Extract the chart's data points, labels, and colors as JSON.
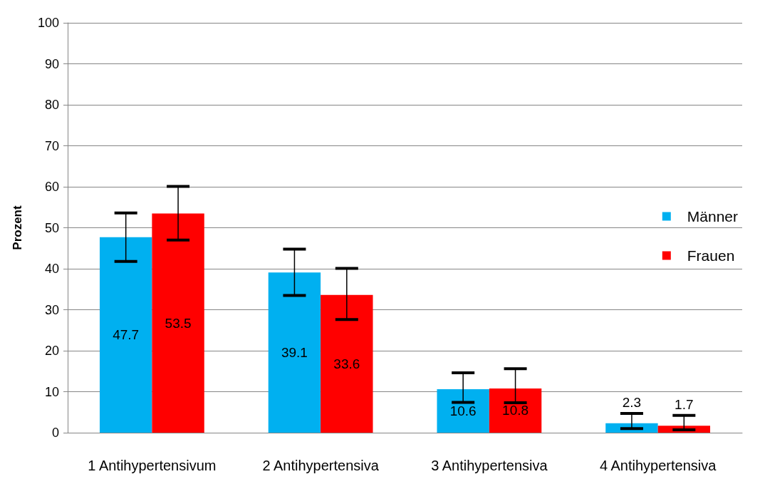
{
  "chart_data": {
    "type": "bar",
    "ylabel": "Prozent",
    "categories": [
      "1 Antihypertensivum",
      "2 Antihypertensiva",
      "3 Antihypertensiva",
      "4 Antihypertensiva"
    ],
    "series": [
      {
        "name": "Männer",
        "color": "#00b0f0",
        "values": [
          47.7,
          39.1,
          10.6,
          2.3
        ],
        "errors": [
          [
            41.8,
            53.6
          ],
          [
            33.5,
            44.8
          ],
          [
            7.4,
            14.6
          ],
          [
            1.0,
            4.7
          ]
        ]
      },
      {
        "name": "Frauen",
        "color": "#ff0000",
        "values": [
          53.5,
          33.6,
          10.8,
          1.7
        ],
        "errors": [
          [
            47.0,
            60.1
          ],
          [
            27.6,
            40.1
          ],
          [
            7.3,
            15.6
          ],
          [
            0.7,
            4.2
          ]
        ]
      }
    ],
    "ylim": [
      0,
      100
    ],
    "yticks": [
      0,
      10,
      20,
      30,
      40,
      50,
      60,
      70,
      80,
      90,
      100
    ],
    "grid": "y",
    "legend": "right",
    "data_labels": true
  }
}
